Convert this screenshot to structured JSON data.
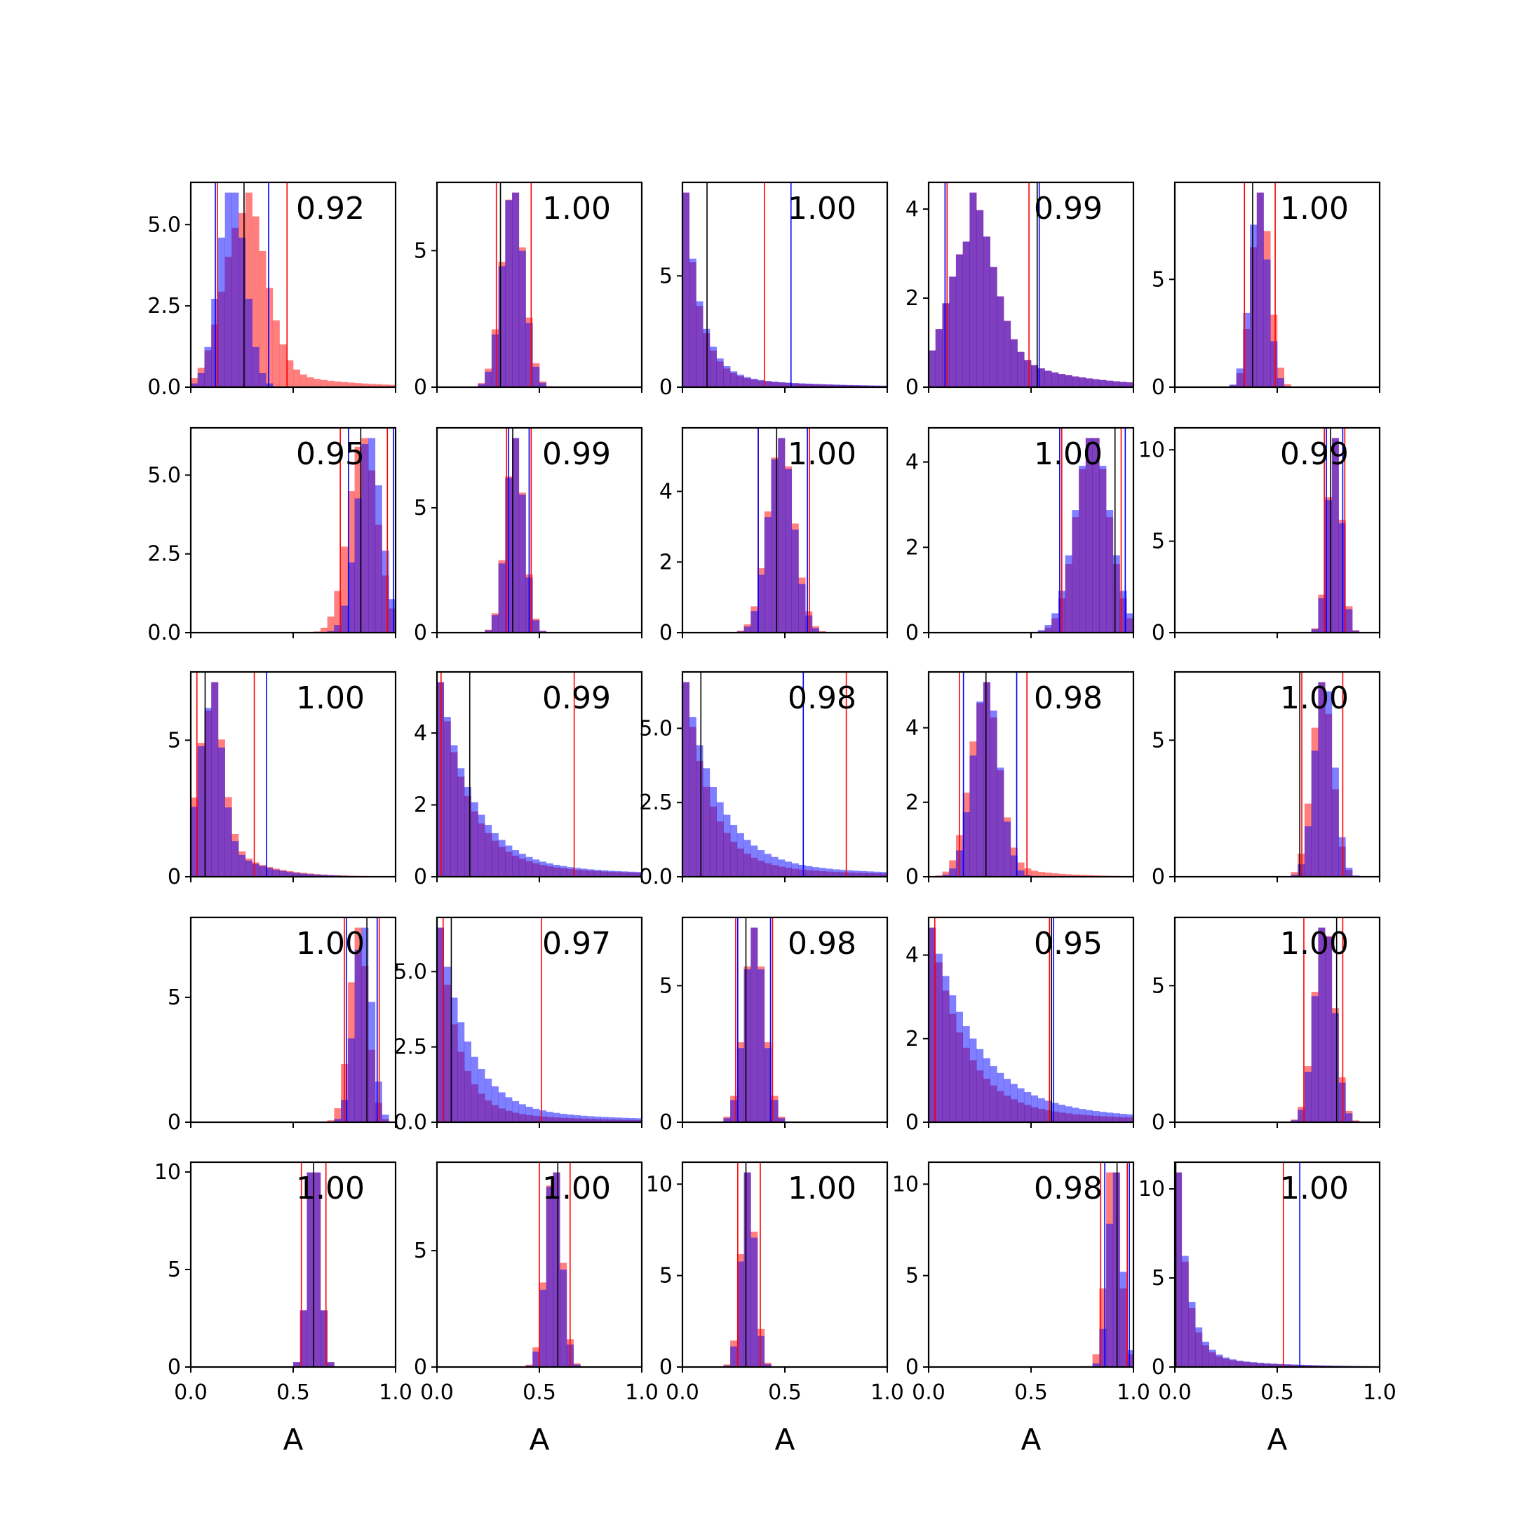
{
  "chart_data": {
    "type": "histogram-grid",
    "rows": 5,
    "cols": 5,
    "xlim": [
      0,
      1
    ],
    "x_ticks": [
      0,
      0.5,
      1
    ],
    "x_tick_labels": [
      "0.0",
      "0.5",
      "1.0"
    ],
    "xlabel": "A",
    "colors": {
      "red": "#ff0000",
      "blue": "#0000ff",
      "overlap": "#8040c0",
      "median": "#000000"
    },
    "panels": [
      {
        "score": "0.92",
        "y_max": 6.3,
        "y_ticks": [
          0,
          2.5,
          5
        ],
        "y_tick_labels": [
          "0.0",
          "2.5",
          "5.0"
        ],
        "red": {
          "mean": 0.26,
          "sd": 0.1,
          "skew": 0.15
        },
        "blue": {
          "mean": 0.2,
          "sd": 0.065,
          "skew": 0
        },
        "lines": {
          "red": [
            0.13,
            0.47
          ],
          "blue": [
            0.12,
            0.38
          ],
          "black": [
            0.26
          ]
        }
      },
      {
        "score": "1.00",
        "y_max": 7.5,
        "y_ticks": [
          0,
          5
        ],
        "y_tick_labels": [
          "0",
          "5"
        ],
        "red": {
          "mean": 0.37,
          "sd": 0.055,
          "skew": 0
        },
        "blue": {
          "mean": 0.37,
          "sd": 0.053,
          "skew": 0
        },
        "lines": {
          "red": [
            0.29,
            0.46
          ],
          "blue": [],
          "black": [
            0.31
          ]
        }
      },
      {
        "score": "1.00",
        "y_max": 9.2,
        "y_ticks": [
          0,
          5
        ],
        "y_tick_labels": [
          "0",
          "5"
        ],
        "red": {
          "decay": 0.07
        },
        "blue": {
          "decay": 0.075
        },
        "lines": {
          "red": [
            0.4
          ],
          "blue": [
            0.53
          ],
          "black": [
            0.12
          ]
        }
      },
      {
        "score": "0.99",
        "y_max": 4.6,
        "y_ticks": [
          0,
          2,
          4
        ],
        "y_tick_labels": [
          "0",
          "2",
          "4"
        ],
        "red": {
          "mean": 0.2,
          "sd": 0.11,
          "skew": 0.35
        },
        "blue": {
          "mean": 0.2,
          "sd": 0.11,
          "skew": 0.35
        },
        "lines": {
          "red": [
            0.09,
            0.49
          ],
          "blue": [
            0.08,
            0.54
          ],
          "black": [
            0.53
          ]
        }
      },
      {
        "score": "1.00",
        "y_max": 9.5,
        "y_ticks": [
          0,
          5
        ],
        "y_tick_labels": [
          "0",
          "5"
        ],
        "red": {
          "mean": 0.42,
          "sd": 0.045,
          "skew": 0
        },
        "blue": {
          "mean": 0.41,
          "sd": 0.043,
          "skew": 0
        },
        "lines": {
          "red": [
            0.34,
            0.49
          ],
          "blue": [],
          "black": [
            0.38
          ]
        }
      },
      {
        "score": "0.95",
        "y_max": 6.5,
        "y_ticks": [
          0,
          2.5,
          5
        ],
        "y_tick_labels": [
          "0.0",
          "2.5",
          "5.0"
        ],
        "red": {
          "mean": 0.84,
          "sd": 0.07,
          "skew": 0
        },
        "blue": {
          "mean": 0.87,
          "sd": 0.06,
          "skew": 0
        },
        "lines": {
          "red": [
            0.73,
            0.96
          ],
          "blue": [
            0.77,
            0.99
          ],
          "black": [
            0.83
          ]
        }
      },
      {
        "score": "0.99",
        "y_max": 8.2,
        "y_ticks": [
          0,
          5
        ],
        "y_tick_labels": [
          "0",
          "5"
        ],
        "red": {
          "mean": 0.38,
          "sd": 0.045,
          "skew": 0
        },
        "blue": {
          "mean": 0.38,
          "sd": 0.044,
          "skew": 0
        },
        "lines": {
          "red": [
            0.34,
            0.46
          ],
          "blue": [
            0.35,
            0.45
          ],
          "black": [
            0.37
          ]
        }
      },
      {
        "score": "1.00",
        "y_max": 5.8,
        "y_ticks": [
          0,
          2,
          4
        ],
        "y_tick_labels": [
          "0",
          "2",
          "4"
        ],
        "red": {
          "mean": 0.48,
          "sd": 0.065,
          "skew": 0
        },
        "blue": {
          "mean": 0.48,
          "sd": 0.062,
          "skew": 0
        },
        "lines": {
          "red": [
            0.37,
            0.62
          ],
          "blue": [
            0.37,
            0.61
          ],
          "black": [
            0.46
          ]
        }
      },
      {
        "score": "1.00",
        "y_max": 4.8,
        "y_ticks": [
          0,
          2,
          4
        ],
        "y_tick_labels": [
          "0",
          "2",
          "4"
        ],
        "red": {
          "mean": 0.8,
          "sd": 0.08,
          "skew": 0
        },
        "blue": {
          "mean": 0.8,
          "sd": 0.085,
          "skew": 0
        },
        "lines": {
          "red": [
            0.65,
            0.94
          ],
          "blue": [
            0.64,
            0.96
          ],
          "black": [
            0.91
          ]
        }
      },
      {
        "score": "0.99",
        "y_max": 11.2,
        "y_ticks": [
          0,
          5,
          10
        ],
        "y_tick_labels": [
          "0",
          "5",
          "10"
        ],
        "red": {
          "mean": 0.78,
          "sd": 0.035,
          "skew": 0
        },
        "blue": {
          "mean": 0.78,
          "sd": 0.034,
          "skew": 0
        },
        "lines": {
          "red": [
            0.73,
            0.83
          ],
          "blue": [
            0.74,
            0.82
          ],
          "black": [
            0.76
          ]
        }
      },
      {
        "score": "1.00",
        "y_max": 7.5,
        "y_ticks": [
          0,
          5
        ],
        "y_tick_labels": [
          "0",
          "5"
        ],
        "red": {
          "mean": 0.09,
          "sd": 0.06,
          "skew": 0.3
        },
        "blue": {
          "mean": 0.09,
          "sd": 0.055,
          "skew": 0.3
        },
        "lines": {
          "red": [
            0.03,
            0.31
          ],
          "blue": [
            0.37
          ],
          "black": [
            0.07
          ]
        }
      },
      {
        "score": "0.99",
        "y_max": 5.7,
        "y_ticks": [
          0,
          2,
          4
        ],
        "y_tick_labels": [
          "0",
          "2",
          "4"
        ],
        "red": {
          "decay": 0.14
        },
        "blue": {
          "decay": 0.16
        },
        "lines": {
          "red": [
            0.02,
            0.67
          ],
          "blue": [],
          "black": [
            0.16
          ]
        }
      },
      {
        "score": "0.98",
        "y_max": 6.9,
        "y_ticks": [
          0,
          2.5,
          5
        ],
        "y_tick_labels": [
          "0.0",
          "2.5",
          "5.0"
        ],
        "red": {
          "decay": 0.12
        },
        "blue": {
          "decay": 0.16
        },
        "lines": {
          "red": [
            0.8
          ],
          "blue": [
            0.59
          ],
          "black": [
            0.09
          ]
        }
      },
      {
        "score": "0.98",
        "y_max": 5.5,
        "y_ticks": [
          0,
          2,
          4
        ],
        "y_tick_labels": [
          "0",
          "2",
          "4"
        ],
        "red": {
          "mean": 0.27,
          "sd": 0.07,
          "skew": 0.1
        },
        "blue": {
          "mean": 0.28,
          "sd": 0.065,
          "skew": 0
        },
        "lines": {
          "red": [
            0.15,
            0.48
          ],
          "blue": [
            0.17,
            0.43
          ],
          "black": [
            0.28
          ]
        }
      },
      {
        "score": "1.00",
        "y_max": 7.5,
        "y_ticks": [
          0,
          5
        ],
        "y_tick_labels": [
          "0",
          "5"
        ],
        "red": {
          "mean": 0.72,
          "sd": 0.05,
          "skew": 0
        },
        "blue": {
          "mean": 0.73,
          "sd": 0.048,
          "skew": 0
        },
        "lines": {
          "red": [
            0.62,
            0.82
          ],
          "blue": [],
          "black": [
            0.61
          ]
        }
      },
      {
        "score": "1.00",
        "y_max": 8.2,
        "y_ticks": [
          0,
          5
        ],
        "y_tick_labels": [
          "0",
          "5"
        ],
        "red": {
          "mean": 0.82,
          "sd": 0.045,
          "skew": 0
        },
        "blue": {
          "mean": 0.84,
          "sd": 0.043,
          "skew": 0
        },
        "lines": {
          "red": [
            0.75,
            0.92
          ],
          "blue": [
            0.76,
            0.91
          ],
          "black": [
            0.86
          ]
        }
      },
      {
        "score": "0.97",
        "y_max": 6.8,
        "y_ticks": [
          0,
          2.5,
          5
        ],
        "y_tick_labels": [
          "0.0",
          "2.5",
          "5.0"
        ],
        "red": {
          "decay": 0.09
        },
        "blue": {
          "decay": 0.14
        },
        "lines": {
          "red": [
            0.03,
            0.51
          ],
          "blue": [],
          "black": [
            0.07
          ]
        }
      },
      {
        "score": "0.98",
        "y_max": 7.5,
        "y_ticks": [
          0,
          5
        ],
        "y_tick_labels": [
          "0",
          "5"
        ],
        "red": {
          "mean": 0.35,
          "sd": 0.05,
          "skew": 0
        },
        "blue": {
          "mean": 0.35,
          "sd": 0.048,
          "skew": 0
        },
        "lines": {
          "red": [
            0.26,
            0.44
          ],
          "blue": [
            0.27,
            0.43
          ],
          "black": [
            0.31
          ]
        }
      },
      {
        "score": "0.95",
        "y_max": 4.9,
        "y_ticks": [
          0,
          2,
          4
        ],
        "y_tick_labels": [
          "0",
          "2",
          "4"
        ],
        "red": {
          "decay": 0.16
        },
        "blue": {
          "decay": 0.22
        },
        "lines": {
          "red": [
            0.03,
            0.59
          ],
          "blue": [
            0.61
          ],
          "black": [
            0.6
          ]
        }
      },
      {
        "score": "1.00",
        "y_max": 7.5,
        "y_ticks": [
          0,
          5
        ],
        "y_tick_labels": [
          "0",
          "5"
        ],
        "red": {
          "mean": 0.73,
          "sd": 0.05,
          "skew": 0
        },
        "blue": {
          "mean": 0.73,
          "sd": 0.048,
          "skew": 0
        },
        "lines": {
          "red": [
            0.63,
            0.82
          ],
          "blue": [],
          "black": [
            0.79
          ]
        }
      },
      {
        "score": "1.00",
        "y_max": 10.5,
        "y_ticks": [
          0,
          5,
          10
        ],
        "y_tick_labels": [
          "0",
          "5",
          "10"
        ],
        "red": {
          "mean": 0.6,
          "sd": 0.03,
          "skew": 0
        },
        "blue": {
          "mean": 0.6,
          "sd": 0.03,
          "skew": 0
        },
        "lines": {
          "red": [
            0.54,
            0.66
          ],
          "blue": [],
          "black": [
            0.6
          ]
        }
      },
      {
        "score": "1.00",
        "y_max": 8.8,
        "y_ticks": [
          0,
          5
        ],
        "y_tick_labels": [
          "0",
          "5"
        ],
        "red": {
          "mean": 0.57,
          "sd": 0.04,
          "skew": 0
        },
        "blue": {
          "mean": 0.57,
          "sd": 0.038,
          "skew": 0
        },
        "lines": {
          "red": [
            0.5,
            0.65
          ],
          "blue": [],
          "black": [
            0.59
          ]
        }
      },
      {
        "score": "1.00",
        "y_max": 11.2,
        "y_ticks": [
          0,
          5,
          10
        ],
        "y_tick_labels": [
          "0",
          "5",
          "10"
        ],
        "red": {
          "mean": 0.32,
          "sd": 0.035,
          "skew": 0
        },
        "blue": {
          "mean": 0.32,
          "sd": 0.033,
          "skew": 0
        },
        "lines": {
          "red": [
            0.27,
            0.38
          ],
          "blue": [],
          "black": [
            0.31
          ]
        }
      },
      {
        "score": "0.98",
        "y_max": 11.2,
        "y_ticks": [
          0,
          5,
          10
        ],
        "y_tick_labels": [
          "0",
          "5",
          "10"
        ],
        "red": {
          "mean": 0.9,
          "sd": 0.035,
          "skew": 0
        },
        "blue": {
          "mean": 0.91,
          "sd": 0.033,
          "skew": 0
        },
        "lines": {
          "red": [
            0.84,
            0.97
          ],
          "blue": [
            0.86,
            0.98
          ],
          "black": [
            0.92
          ]
        }
      },
      {
        "score": "1.00",
        "y_max": 11.5,
        "y_ticks": [
          0,
          5,
          10
        ],
        "y_tick_labels": [
          "0",
          "5",
          "10"
        ],
        "red": {
          "decay": 0.05
        },
        "blue": {
          "decay": 0.055
        },
        "lines": {
          "red": [
            0.53
          ],
          "blue": [
            0.61
          ],
          "black": [
            0.005
          ]
        }
      }
    ]
  }
}
